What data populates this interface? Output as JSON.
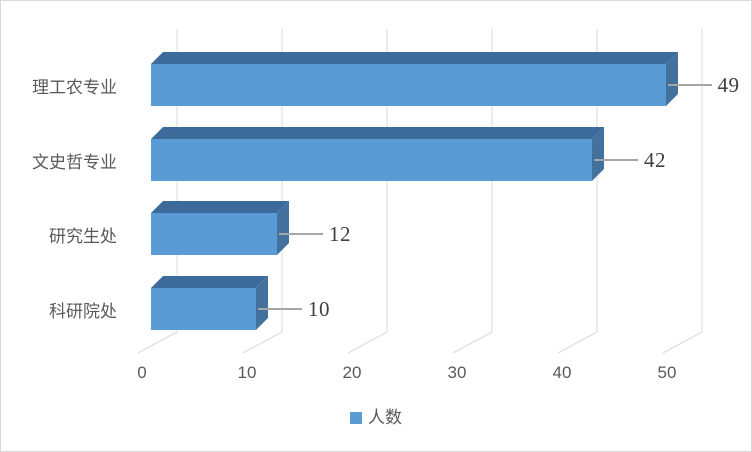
{
  "chart_data": {
    "type": "bar",
    "orientation": "horizontal",
    "effect": "3d",
    "title": "",
    "categories": [
      "理工农专业",
      "文史哲专业",
      "研究生处",
      "科研院处"
    ],
    "values": [
      49,
      42,
      12,
      10
    ],
    "data_labels": [
      "49",
      "42",
      "12",
      "10"
    ],
    "series_name": "人数",
    "xticks": [
      "0",
      "10",
      "20",
      "30",
      "40",
      "50"
    ],
    "xtick_values": [
      0,
      10,
      20,
      30,
      40,
      50
    ],
    "xlim": [
      0,
      55
    ],
    "grid": "vertical-gridlines-on",
    "legend_position": "bottom-center",
    "colors": {
      "bar_front": "#5b9bd5",
      "bar_top": "#3c6a9b",
      "bar_side": "#41719c",
      "gridline": "#d9d9d9",
      "leader_line": "#a6a6a6",
      "tick_text": "#595959",
      "category_text": "#595959",
      "data_label_text": "#404040",
      "legend_text": "#595959",
      "border": "#d9d9d9",
      "background": "#ffffff"
    }
  }
}
